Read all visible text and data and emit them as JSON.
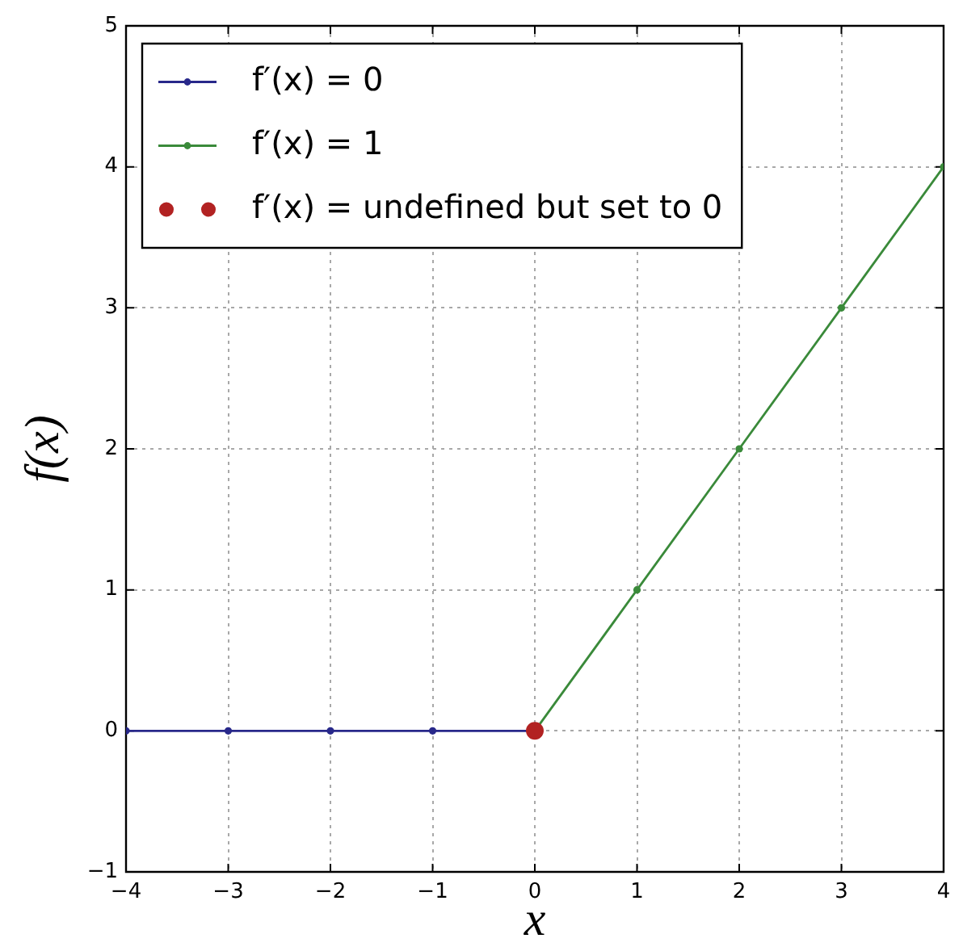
{
  "chart_data": {
    "type": "line",
    "xlabel": "x",
    "ylabel": "f(x)",
    "xlim": [
      -4,
      4
    ],
    "ylim": [
      -1,
      5
    ],
    "xticks": [
      {
        "value": -4,
        "label": "−4"
      },
      {
        "value": -3,
        "label": "−3"
      },
      {
        "value": -2,
        "label": "−2"
      },
      {
        "value": -1,
        "label": "−1"
      },
      0,
      1,
      2,
      3,
      4
    ],
    "yticks": [
      {
        "value": -1,
        "label": "−1"
      },
      0,
      1,
      2,
      3,
      4,
      5
    ],
    "grid": true,
    "legend": "top left",
    "marker": "circle",
    "series": [
      {
        "name": "f′(x) = 0",
        "color": "#28288a",
        "x": [
          -4,
          -3,
          -2,
          -1,
          0
        ],
        "values": [
          0,
          0,
          0,
          0,
          0
        ]
      },
      {
        "name": "f′(x) = 1",
        "color": "#3a8a3a",
        "x": [
          0,
          1,
          2,
          3,
          4
        ],
        "values": [
          0,
          1,
          2,
          3,
          4
        ]
      },
      {
        "name": "f′(x) = undefined but set to 0",
        "type": "scatter",
        "color": "#b22222",
        "x": [
          0
        ],
        "values": [
          0
        ]
      }
    ]
  }
}
